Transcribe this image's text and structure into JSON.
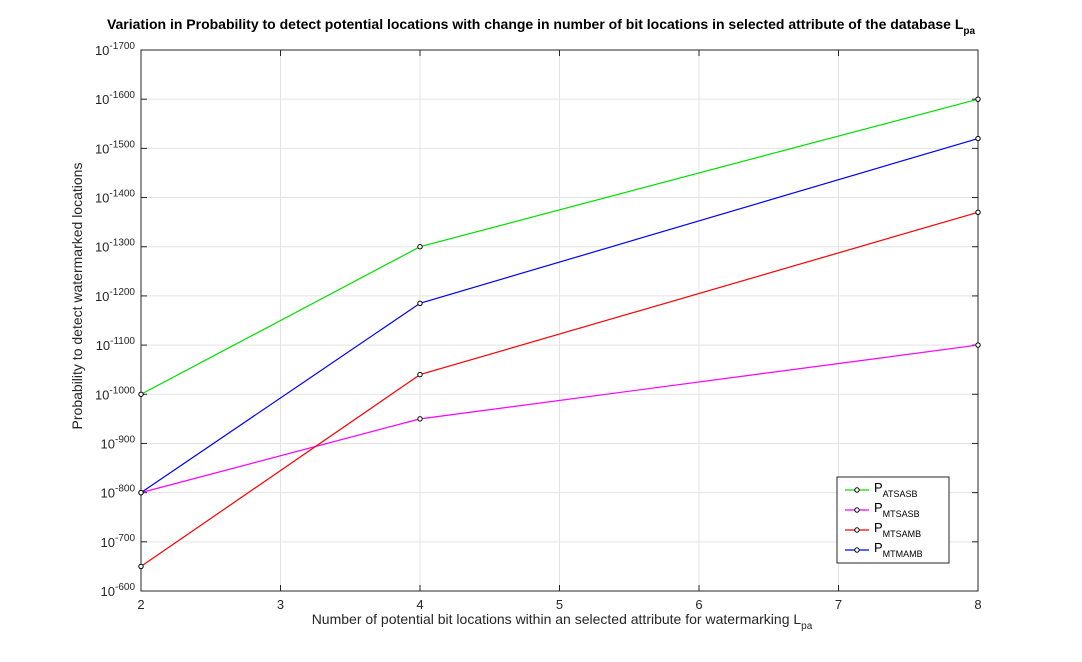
{
  "chart_data": {
    "type": "line",
    "title": "Variation in Probability to detect potential locations with change in number of bit locations in selected attribute of the database L",
    "title_subscript": "pa",
    "xlabel": "Number of potential bit locations within an selected attribute for watermarking L",
    "xlabel_subscript": "pa",
    "ylabel": "Probability to detect watermarked locations",
    "xlim": [
      2,
      8
    ],
    "ylim_exponent": [
      -600,
      -1700
    ],
    "y_scale": "log",
    "y_tick_base": "10",
    "x_ticks": [
      "2",
      "3",
      "4",
      "5",
      "6",
      "7",
      "8"
    ],
    "y_tick_exponents": [
      "-600",
      "-700",
      "-800",
      "-900",
      "-1000",
      "-1100",
      "-1200",
      "-1300",
      "-1400",
      "-1500",
      "-1600",
      "-1700"
    ],
    "grid": true,
    "legend_position": "bottom-right",
    "series": [
      {
        "name": "P",
        "subscript": "ATSASB",
        "color": "#00e000",
        "x": [
          2,
          4,
          8
        ],
        "y_exponent": [
          -1000,
          -1300,
          -1600
        ]
      },
      {
        "name": "P",
        "subscript": "MTSASB",
        "color": "#ff00ff",
        "x": [
          2,
          4,
          8
        ],
        "y_exponent": [
          -800,
          -950,
          -1100
        ]
      },
      {
        "name": "P",
        "subscript": "MTSAMB",
        "color": "#ff0000",
        "x": [
          2,
          4,
          8
        ],
        "y_exponent": [
          -650,
          -1040,
          -1370
        ]
      },
      {
        "name": "P",
        "subscript": "MTMAMB",
        "color": "#0000ff",
        "x": [
          2,
          4,
          8
        ],
        "y_exponent": [
          -800,
          -1185,
          -1520
        ]
      }
    ]
  }
}
